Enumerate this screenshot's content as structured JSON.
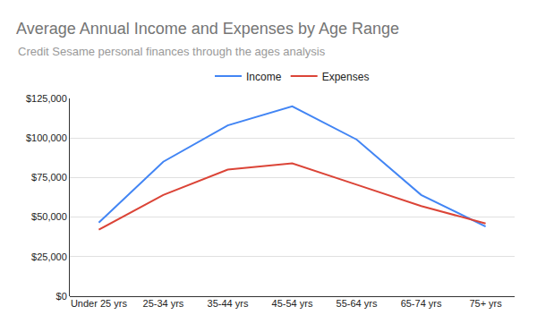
{
  "chart_data": {
    "type": "line",
    "title": "Average Annual Income and Expenses by Age Range",
    "subtitle": "Credit Sesame personal finances through the ages analysis",
    "categories": [
      "Under 25 yrs",
      "25-34 yrs",
      "35-44 yrs",
      "45-54 yrs",
      "55-64 yrs",
      "65-74 yrs",
      "75+ yrs"
    ],
    "series": [
      {
        "name": "Income",
        "color": "#4285f4",
        "values": [
          46500,
          85000,
          108000,
          120000,
          99000,
          64000,
          44000
        ]
      },
      {
        "name": "Expenses",
        "color": "#db4437",
        "values": [
          42000,
          64000,
          80000,
          84000,
          70500,
          57000,
          46000
        ]
      }
    ],
    "ylim": [
      0,
      125000
    ],
    "yticks": [
      {
        "value": 0,
        "label": "$0"
      },
      {
        "value": 25000,
        "label": "$25,000"
      },
      {
        "value": 50000,
        "label": "$50,000"
      },
      {
        "value": 75000,
        "label": "$75,000"
      },
      {
        "value": 100000,
        "label": "$100,000"
      },
      {
        "value": 125000,
        "label": "$125,000"
      }
    ],
    "grid": true,
    "legend": "top"
  }
}
